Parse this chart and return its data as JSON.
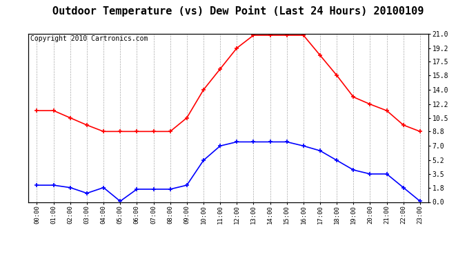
{
  "title": "Outdoor Temperature (vs) Dew Point (Last 24 Hours) 20100109",
  "copyright": "Copyright 2010 Cartronics.com",
  "x_labels": [
    "00:00",
    "01:00",
    "02:00",
    "03:00",
    "04:00",
    "05:00",
    "06:00",
    "07:00",
    "08:00",
    "09:00",
    "10:00",
    "11:00",
    "12:00",
    "13:00",
    "14:00",
    "15:00",
    "16:00",
    "17:00",
    "18:00",
    "19:00",
    "20:00",
    "21:00",
    "22:00",
    "23:00"
  ],
  "temp_data": [
    11.4,
    11.4,
    10.5,
    9.6,
    8.8,
    8.8,
    8.8,
    8.8,
    8.8,
    10.5,
    14.0,
    16.6,
    19.2,
    20.8,
    20.8,
    20.8,
    20.8,
    18.3,
    15.8,
    13.1,
    12.2,
    11.4,
    9.6,
    8.8
  ],
  "dew_data": [
    2.1,
    2.1,
    1.8,
    1.1,
    1.8,
    0.1,
    1.6,
    1.6,
    1.6,
    2.1,
    5.2,
    7.0,
    7.5,
    7.5,
    7.5,
    7.5,
    7.0,
    6.4,
    5.2,
    4.0,
    3.5,
    3.5,
    1.8,
    0.1
  ],
  "temp_color": "#FF0000",
  "dew_color": "#0000FF",
  "background_color": "#FFFFFF",
  "plot_bg_color": "#FFFFFF",
  "grid_color": "#AAAAAA",
  "y_right_ticks": [
    0.0,
    1.8,
    3.5,
    5.2,
    7.0,
    8.8,
    10.5,
    12.2,
    14.0,
    15.8,
    17.5,
    19.2,
    21.0
  ],
  "ylim": [
    0.0,
    21.0
  ],
  "title_fontsize": 11,
  "copyright_fontsize": 7
}
